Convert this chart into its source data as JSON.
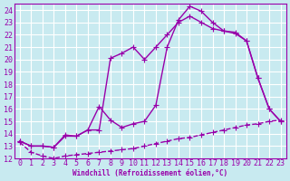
{
  "xlabel": "Windchill (Refroidissement éolien,°C)",
  "bg_color": "#c8eaf0",
  "line_color": "#9900aa",
  "grid_color": "#ffffff",
  "xlim": [
    -0.5,
    23.5
  ],
  "ylim": [
    12,
    24.5
  ],
  "xticks": [
    0,
    1,
    2,
    3,
    4,
    5,
    6,
    7,
    8,
    9,
    10,
    11,
    12,
    13,
    14,
    15,
    16,
    17,
    18,
    19,
    20,
    21,
    22,
    23
  ],
  "yticks": [
    12,
    13,
    14,
    15,
    16,
    17,
    18,
    19,
    20,
    21,
    22,
    23,
    24
  ],
  "line1_x": [
    0,
    1,
    2,
    3,
    4,
    5,
    6,
    7,
    8,
    9,
    10,
    11,
    12,
    13,
    14,
    15,
    16,
    17,
    18,
    19,
    20,
    21,
    22,
    23
  ],
  "line1_y": [
    13.4,
    13.0,
    13.0,
    12.9,
    13.8,
    13.8,
    14.3,
    14.3,
    20.1,
    20.5,
    21.0,
    20.0,
    21.0,
    22.0,
    23.0,
    23.5,
    23.0,
    22.5,
    22.3,
    22.2,
    21.5,
    18.5,
    16.0,
    15.0
  ],
  "line2_x": [
    0,
    1,
    2,
    3,
    4,
    5,
    6,
    7,
    8,
    9,
    10,
    11,
    12,
    13,
    14,
    15,
    16,
    17,
    18,
    19,
    20,
    21,
    22,
    23
  ],
  "line2_y": [
    13.4,
    13.0,
    13.0,
    12.9,
    13.9,
    13.8,
    14.3,
    16.2,
    15.1,
    14.5,
    14.8,
    15.0,
    16.3,
    21.0,
    23.2,
    24.3,
    23.9,
    23.0,
    22.3,
    22.1,
    21.5,
    18.5,
    16.0,
    15.0
  ],
  "line3_x": [
    0,
    1,
    2,
    3,
    4,
    5,
    6,
    7,
    8,
    9,
    10,
    11,
    12,
    13,
    14,
    15,
    16,
    17,
    18,
    19,
    20,
    21,
    22,
    23
  ],
  "line3_y": [
    13.3,
    12.5,
    12.2,
    12.0,
    12.2,
    12.3,
    12.4,
    12.5,
    12.6,
    12.7,
    12.8,
    13.0,
    13.2,
    13.4,
    13.6,
    13.7,
    13.9,
    14.1,
    14.3,
    14.5,
    14.7,
    14.8,
    15.0,
    15.1
  ],
  "linewidth": 1.0,
  "markersize": 4,
  "tick_fontsize": 6.0
}
